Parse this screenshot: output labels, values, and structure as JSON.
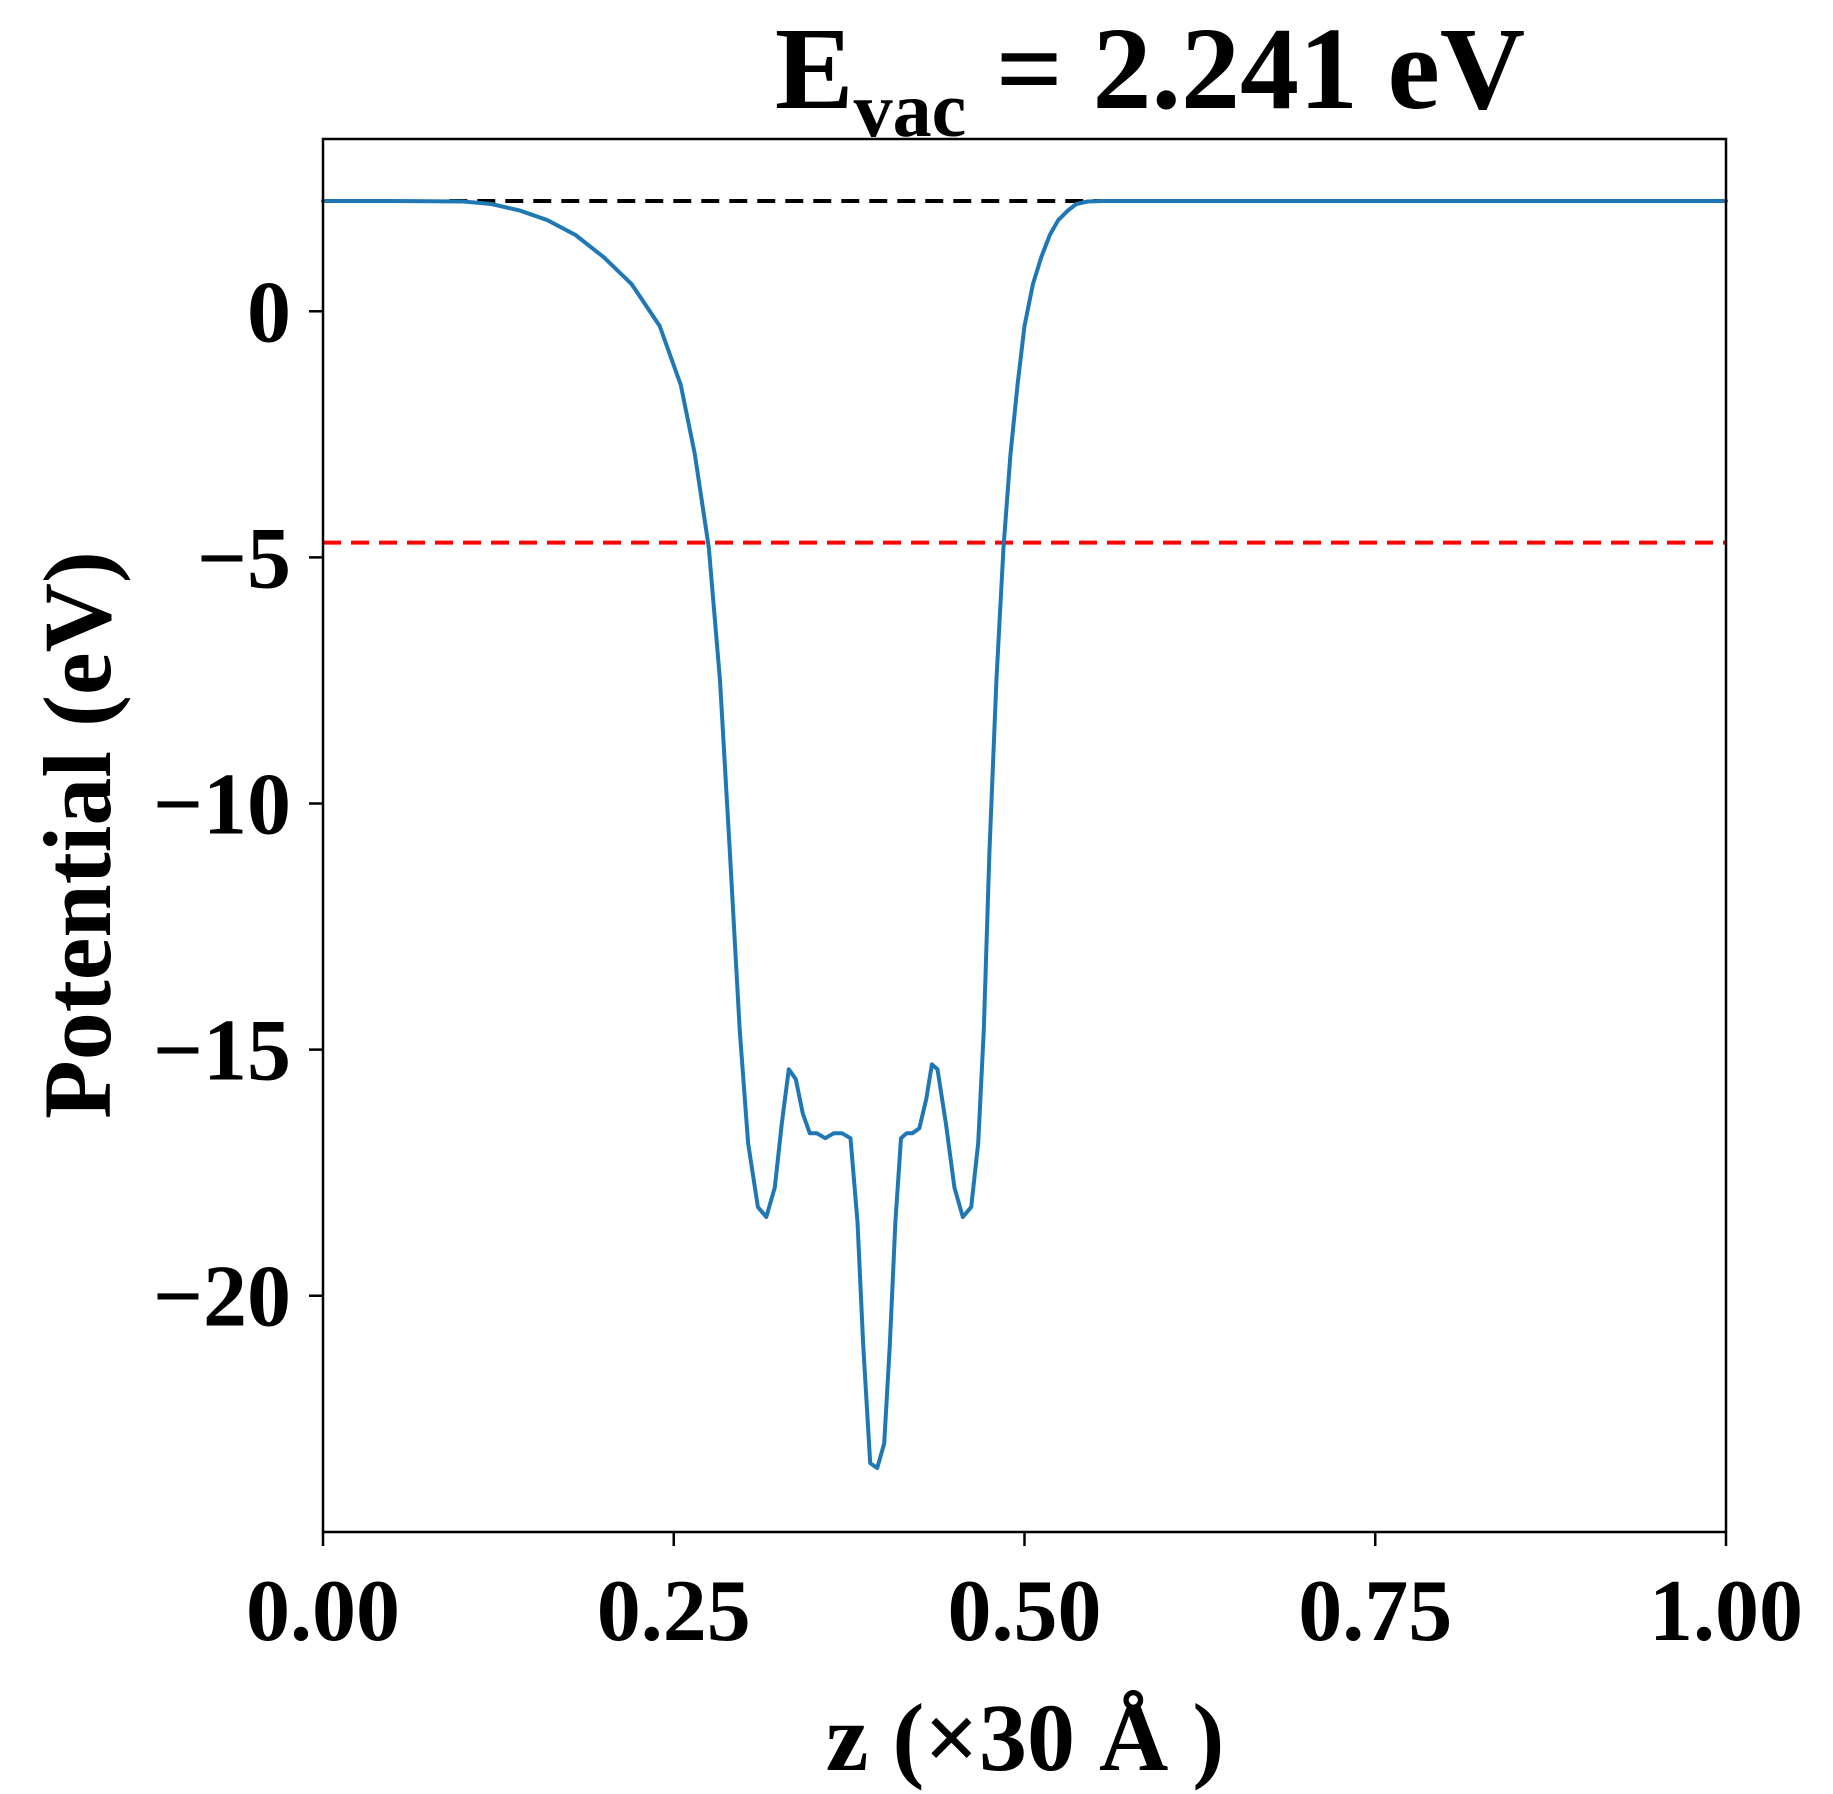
{
  "chart_data": {
    "type": "line",
    "title": {
      "main": "E",
      "subscript": "vac",
      "rest": " = 2.241 eV"
    },
    "xlabel": "z (×30 Å )",
    "ylabel": "Potential (eV)",
    "xlim": [
      0,
      1
    ],
    "ylim": [
      -24.8,
      3.5
    ],
    "x_ticks": [
      0,
      0.25,
      0.5,
      0.75,
      1.0
    ],
    "x_tick_labels": [
      "0.00",
      "0.25",
      "0.50",
      "0.75",
      "1.00"
    ],
    "y_ticks": [
      0,
      -5,
      -10,
      -15,
      -20
    ],
    "y_tick_labels": [
      "0",
      "−5",
      "−10",
      "−15",
      "−20"
    ],
    "grid": false,
    "legend": "none",
    "series": [
      {
        "color": "#1f77b4",
        "x": [
          0.0,
          0.05,
          0.1,
          0.12,
          0.14,
          0.16,
          0.18,
          0.2,
          0.22,
          0.24,
          0.255,
          0.265,
          0.275,
          0.283,
          0.29,
          0.297,
          0.303,
          0.31,
          0.316,
          0.322,
          0.327,
          0.332,
          0.337,
          0.342,
          0.347,
          0.352,
          0.358,
          0.364,
          0.37,
          0.376,
          0.381,
          0.385,
          0.39,
          0.395,
          0.4,
          0.404,
          0.408,
          0.412,
          0.416,
          0.42,
          0.425,
          0.43,
          0.434,
          0.438,
          0.444,
          0.45,
          0.456,
          0.462,
          0.467,
          0.471,
          0.475,
          0.48,
          0.485,
          0.49,
          0.495,
          0.5,
          0.506,
          0.512,
          0.518,
          0.524,
          0.531,
          0.537,
          0.545,
          0.555,
          0.565,
          0.58,
          0.6,
          0.62,
          0.64,
          0.66,
          0.68,
          0.7,
          0.75,
          0.8,
          0.9,
          1.0
        ],
        "values": [
          2.24,
          2.24,
          2.23,
          2.18,
          2.05,
          1.85,
          1.55,
          1.1,
          0.55,
          -0.3,
          -1.5,
          -2.9,
          -4.8,
          -7.5,
          -11.0,
          -14.6,
          -16.9,
          -18.2,
          -18.4,
          -17.8,
          -16.5,
          -15.4,
          -15.6,
          -16.3,
          -16.7,
          -16.7,
          -16.8,
          -16.7,
          -16.7,
          -16.8,
          -18.5,
          -21.0,
          -23.4,
          -23.5,
          -23.0,
          -21.0,
          -18.5,
          -16.8,
          -16.7,
          -16.7,
          -16.6,
          -16.0,
          -15.3,
          -15.4,
          -16.5,
          -17.8,
          -18.4,
          -18.2,
          -16.9,
          -14.6,
          -11.0,
          -7.5,
          -4.8,
          -2.9,
          -1.5,
          -0.3,
          0.55,
          1.1,
          1.55,
          1.85,
          2.05,
          2.18,
          2.23,
          2.24,
          2.24,
          2.24,
          2.24,
          2.24,
          2.24,
          2.24,
          2.24,
          2.24,
          2.24,
          2.24,
          2.24,
          2.24
        ]
      }
    ],
    "reference_lines": [
      {
        "y": 2.241,
        "style": "dashed",
        "color": "#000000",
        "xrange": [
          0.09,
          0.7
        ]
      },
      {
        "y": -4.7,
        "style": "dashed",
        "color": "#ff0000",
        "xrange": [
          0,
          1
        ]
      }
    ]
  }
}
